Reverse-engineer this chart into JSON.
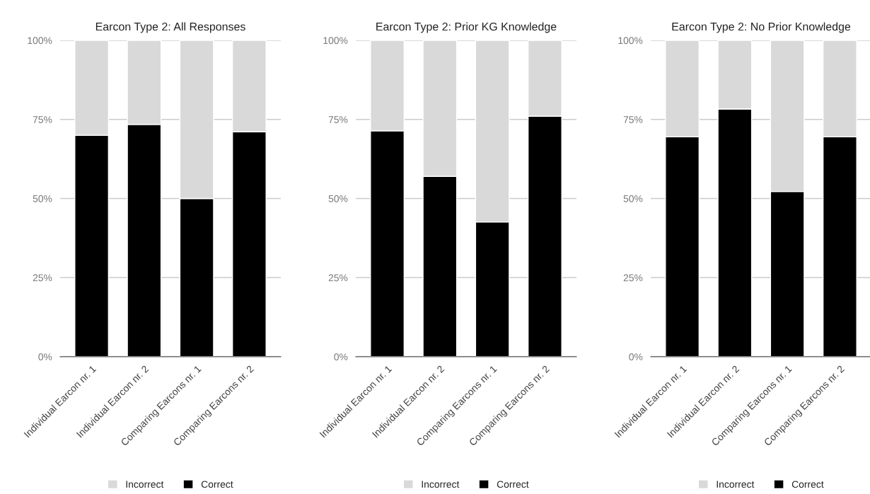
{
  "chart_data": [
    {
      "type": "bar",
      "title": "Earcon Type 2: All Responses",
      "stacked": true,
      "legend": "bottom",
      "grid": "y",
      "categories": [
        "Individual Earcon nr. 1",
        "Individual Earcon nr. 2",
        "Comparing Earcons nr. 1",
        "Comparing Earcons nr. 2"
      ],
      "ylim": [
        0,
        100
      ],
      "yticks": [
        {
          "value": 0,
          "label": "0%"
        },
        {
          "value": 25,
          "label": "25%"
        },
        {
          "value": 50,
          "label": "50%"
        },
        {
          "value": 75,
          "label": "75%"
        },
        {
          "value": 100,
          "label": "100%"
        }
      ],
      "series": [
        {
          "name": "Correct",
          "color": "#000000",
          "values": [
            70,
            73.4,
            50,
            71.1
          ]
        },
        {
          "name": "Incorrect",
          "color": "#d9d9d9",
          "values": [
            30,
            26.6,
            50,
            28.9
          ]
        }
      ]
    },
    {
      "type": "bar",
      "title": "Earcon Type 2: Prior KG Knowledge",
      "stacked": true,
      "legend": "bottom",
      "grid": "y",
      "categories": [
        "Individual Earcon nr. 1",
        "Individual Earcon nr. 2",
        "Comparing Earcons nr. 1",
        "Comparing Earcons nr. 2"
      ],
      "ylim": [
        0,
        100
      ],
      "yticks": [
        {
          "value": 0,
          "label": "0%"
        },
        {
          "value": 25,
          "label": "25%"
        },
        {
          "value": 50,
          "label": "50%"
        },
        {
          "value": 75,
          "label": "75%"
        },
        {
          "value": 100,
          "label": "100%"
        }
      ],
      "series": [
        {
          "name": "Correct",
          "color": "#000000",
          "values": [
            71.4,
            57,
            42.6,
            76
          ]
        },
        {
          "name": "Incorrect",
          "color": "#d9d9d9",
          "values": [
            28.6,
            43,
            57.4,
            24
          ]
        }
      ]
    },
    {
      "type": "bar",
      "title": "Earcon Type 2: No Prior Knowledge",
      "stacked": true,
      "legend": "bottom",
      "grid": "y",
      "categories": [
        "Individual Earcon nr. 1",
        "Individual Earcon nr. 2",
        "Comparing Earcons nr. 1",
        "Comparing Earcons nr. 2"
      ],
      "ylim": [
        0,
        100
      ],
      "yticks": [
        {
          "value": 0,
          "label": "0%"
        },
        {
          "value": 25,
          "label": "25%"
        },
        {
          "value": 50,
          "label": "50%"
        },
        {
          "value": 75,
          "label": "75%"
        },
        {
          "value": 100,
          "label": "100%"
        }
      ],
      "series": [
        {
          "name": "Correct",
          "color": "#000000",
          "values": [
            69.5,
            78.3,
            52.2,
            69.5
          ]
        },
        {
          "name": "Incorrect",
          "color": "#d9d9d9",
          "values": [
            30.5,
            21.7,
            47.8,
            30.5
          ]
        }
      ]
    }
  ]
}
